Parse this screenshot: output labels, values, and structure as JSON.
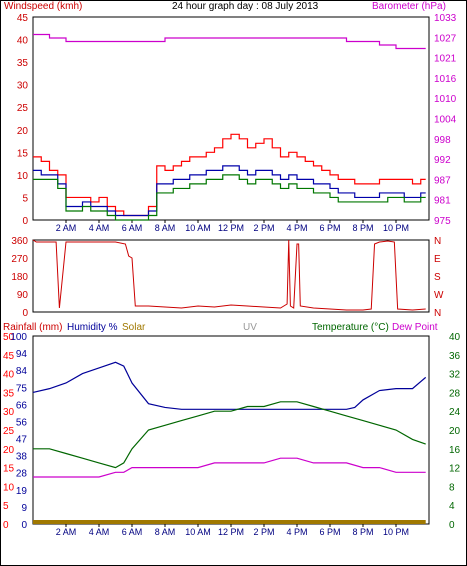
{
  "header": {
    "wind_label": "Windspeed (kmh)",
    "title": "24 hour graph day : 08 July 2013",
    "baro_label": "Barometer (hPa)",
    "rain_label": "Rainfall (mm)",
    "hum_label": "Humidity %",
    "solar_label": "Solar",
    "uv_label": "UV",
    "temp_label": "Temperature (°C)",
    "dew_label": "Dew Point"
  },
  "colors": {
    "wind": "#cc0000",
    "gust": "#ff0000",
    "avg": "#0000aa",
    "green": "#007700",
    "baro": "#cc00cc",
    "direction": "#cc0000",
    "humidity": "#000099",
    "solar": "#a07800",
    "uv": "#999999",
    "temp": "#006600",
    "dew": "#cc00cc",
    "rain": "#ff0000"
  },
  "chart_data": [
    {
      "type": "line",
      "title": "24 hour graph day : 08 July 2013",
      "x_ticks": [
        "2 AM",
        "4 AM",
        "6 AM",
        "8 AM",
        "10 AM",
        "12 PM",
        "2 PM",
        "4 PM",
        "6 PM",
        "8 PM",
        "10 PM"
      ],
      "x_range_hours": [
        0,
        24
      ],
      "y_left_label": "Windspeed (kmh)",
      "y_left_ticks": [
        "0",
        "5",
        "10",
        "15",
        "20",
        "25",
        "30",
        "35",
        "40",
        "45"
      ],
      "y_left_range": [
        0,
        45
      ],
      "y_right_label": "Barometer (hPa)",
      "y_right_ticks": [
        "975",
        "981",
        "987",
        "992",
        "998",
        "1004",
        "1010",
        "1016",
        "1021",
        "1027",
        "1033"
      ],
      "y_right_range": [
        975,
        1033
      ],
      "series": [
        {
          "axis": "left",
          "style": "gust",
          "x": [
            0,
            0.5,
            1,
            1.5,
            2,
            2.5,
            3,
            3.5,
            4,
            4.5,
            5,
            5.5,
            6,
            6.5,
            7,
            7.5,
            8,
            8.5,
            9,
            9.5,
            10,
            10.5,
            11,
            11.5,
            12,
            12.5,
            13,
            13.5,
            14,
            14.5,
            15,
            15.5,
            16,
            16.5,
            17,
            17.5,
            18,
            18.5,
            19,
            19.5,
            20,
            20.5,
            21,
            21.5,
            22,
            22.5,
            23,
            23.5,
            23.8
          ],
          "y": [
            14,
            13,
            11,
            10,
            5,
            5,
            5,
            4,
            5,
            3,
            2,
            1,
            1,
            1,
            3,
            12,
            11,
            12,
            13,
            14,
            14,
            15,
            16,
            18,
            19,
            18,
            16,
            17,
            18,
            16,
            14,
            15,
            14,
            13,
            12,
            11,
            10,
            9,
            9,
            8,
            8,
            8,
            9,
            9,
            9,
            9,
            8,
            9,
            9
          ]
        },
        {
          "axis": "left",
          "style": "avg",
          "x": [
            0,
            0.5,
            1,
            1.5,
            2,
            2.5,
            3,
            3.5,
            4,
            4.5,
            5,
            5.5,
            6,
            6.5,
            7,
            7.5,
            8,
            8.5,
            9,
            9.5,
            10,
            10.5,
            11,
            11.5,
            12,
            12.5,
            13,
            13.5,
            14,
            14.5,
            15,
            15.5,
            16,
            16.5,
            17,
            17.5,
            18,
            18.5,
            19,
            19.5,
            20,
            20.5,
            21,
            21.5,
            22,
            22.5,
            23,
            23.5,
            23.8
          ],
          "y": [
            11,
            10,
            10,
            8,
            3,
            3,
            4,
            3,
            3,
            2,
            1,
            1,
            1,
            1,
            2,
            8,
            8,
            9,
            9,
            10,
            10,
            11,
            11,
            12,
            12,
            11,
            10,
            11,
            11,
            10,
            9,
            10,
            9,
            9,
            8,
            8,
            7,
            6,
            6,
            5,
            5,
            5,
            6,
            6,
            6,
            5,
            5,
            6,
            6
          ]
        },
        {
          "axis": "left",
          "style": "green",
          "x": [
            0,
            0.5,
            1,
            1.5,
            2,
            2.5,
            3,
            3.5,
            4,
            4.5,
            5,
            5.5,
            6,
            6.5,
            7,
            7.5,
            8,
            8.5,
            9,
            9.5,
            10,
            10.5,
            11,
            11.5,
            12,
            12.5,
            13,
            13.5,
            14,
            14.5,
            15,
            15.5,
            16,
            16.5,
            17,
            17.5,
            18,
            18.5,
            19,
            19.5,
            20,
            20.5,
            21,
            21.5,
            22,
            22.5,
            23,
            23.5,
            23.8
          ],
          "y": [
            9,
            9,
            9,
            7,
            2,
            2,
            3,
            2,
            2,
            1,
            0,
            0,
            0,
            0,
            1,
            6,
            6,
            7,
            7,
            8,
            8,
            9,
            9,
            10,
            10,
            9,
            8,
            9,
            9,
            8,
            7,
            8,
            7,
            7,
            6,
            6,
            5,
            4,
            4,
            4,
            4,
            4,
            4,
            5,
            5,
            4,
            4,
            5,
            5
          ]
        },
        {
          "axis": "right",
          "style": "baro",
          "x": [
            0,
            1,
            2,
            3,
            4,
            5,
            6,
            7,
            8,
            9,
            10,
            11,
            12,
            13,
            14,
            15,
            16,
            17,
            18,
            19,
            20,
            21,
            22,
            23,
            23.8
          ],
          "y": [
            1028,
            1027,
            1026,
            1026,
            1026,
            1026,
            1026,
            1026,
            1027,
            1027,
            1027,
            1027,
            1027,
            1027,
            1027,
            1027,
            1027,
            1027,
            1027,
            1026,
            1026,
            1025,
            1024,
            1024,
            1024
          ]
        }
      ]
    },
    {
      "type": "line",
      "x_range_hours": [
        0,
        24
      ],
      "y_left_ticks": [
        "0",
        "90",
        "180",
        "270",
        "360"
      ],
      "y_left_range": [
        0,
        360
      ],
      "y_right_ticks": [
        "N",
        "W",
        "S",
        "E",
        "N"
      ],
      "series": [
        {
          "name": "Wind direction",
          "x": [
            0,
            0.2,
            1.4,
            1.6,
            2,
            3,
            4,
            5,
            5.6,
            5.8,
            6,
            6.2,
            7,
            8,
            9,
            10,
            11,
            12,
            13,
            14,
            15,
            15.4,
            15.5,
            15.6,
            15.8,
            16,
            16.1,
            16.2,
            17,
            18,
            19,
            20,
            20.5,
            20.7,
            21,
            21.5,
            21.9,
            22.1,
            23,
            23.8
          ],
          "y": [
            360,
            350,
            350,
            20,
            350,
            350,
            350,
            350,
            340,
            280,
            270,
            30,
            30,
            25,
            20,
            30,
            25,
            35,
            30,
            25,
            20,
            40,
            360,
            30,
            20,
            340,
            340,
            30,
            20,
            15,
            10,
            10,
            15,
            340,
            350,
            355,
            350,
            15,
            10,
            15
          ]
        }
      ]
    },
    {
      "type": "line",
      "x_range_hours": [
        0,
        24
      ],
      "y_left_ticks": [
        "0",
        "5",
        "10",
        "15",
        "20",
        "25",
        "30",
        "35",
        "40",
        "45",
        "50"
      ],
      "y_left_range": [
        0,
        50
      ],
      "y_hum_ticks": [
        "0",
        "9",
        "19",
        "28",
        "38",
        "47",
        "56",
        "66",
        "75",
        "84",
        "94",
        "100"
      ],
      "y_hum_range": [
        0,
        100
      ],
      "y_right_label": "Temperature (°C)",
      "y_right_ticks": [
        "0",
        "4",
        "8",
        "12",
        "16",
        "20",
        "24",
        "28",
        "32",
        "36",
        "40"
      ],
      "y_right_range": [
        0,
        40
      ],
      "series": [
        {
          "name": "Humidity %",
          "x": [
            0,
            1,
            2,
            3,
            4,
            5,
            5.5,
            6,
            7,
            8,
            9,
            10,
            11,
            12,
            13,
            14,
            15,
            16,
            17,
            18,
            19,
            19.5,
            20,
            21,
            22,
            23,
            23.8
          ],
          "y": [
            70,
            72,
            75,
            80,
            83,
            86,
            84,
            75,
            64,
            62,
            61,
            61,
            61,
            61,
            61,
            61,
            61,
            61,
            61,
            61,
            61,
            62,
            66,
            71,
            72,
            72,
            78
          ]
        },
        {
          "name": "Temperature (°C)",
          "x": [
            0,
            1,
            2,
            3,
            4,
            5,
            5.5,
            6,
            7,
            8,
            9,
            10,
            11,
            12,
            13,
            14,
            15,
            16,
            17,
            18,
            19,
            20,
            21,
            22,
            23,
            23.8
          ],
          "y": [
            16,
            16,
            15,
            14,
            13,
            12,
            13,
            16,
            20,
            21,
            22,
            23,
            24,
            24,
            25,
            25,
            26,
            26,
            25,
            24,
            23,
            22,
            21,
            20,
            18,
            17
          ]
        },
        {
          "name": "Dew Point",
          "x": [
            0,
            1,
            2,
            3,
            4,
            5,
            5.5,
            6,
            7,
            8,
            9,
            10,
            11,
            12,
            13,
            14,
            15,
            16,
            17,
            18,
            19,
            20,
            21,
            22,
            23,
            23.8
          ],
          "y": [
            10,
            10,
            10,
            10,
            10,
            11,
            11,
            12,
            12,
            12,
            12,
            12,
            13,
            13,
            13,
            13,
            14,
            14,
            13,
            13,
            13,
            12,
            12,
            11,
            11,
            11
          ]
        },
        {
          "name": "Rainfall (mm)",
          "x": [
            0,
            23.8
          ],
          "y": [
            0,
            0
          ]
        }
      ]
    }
  ]
}
